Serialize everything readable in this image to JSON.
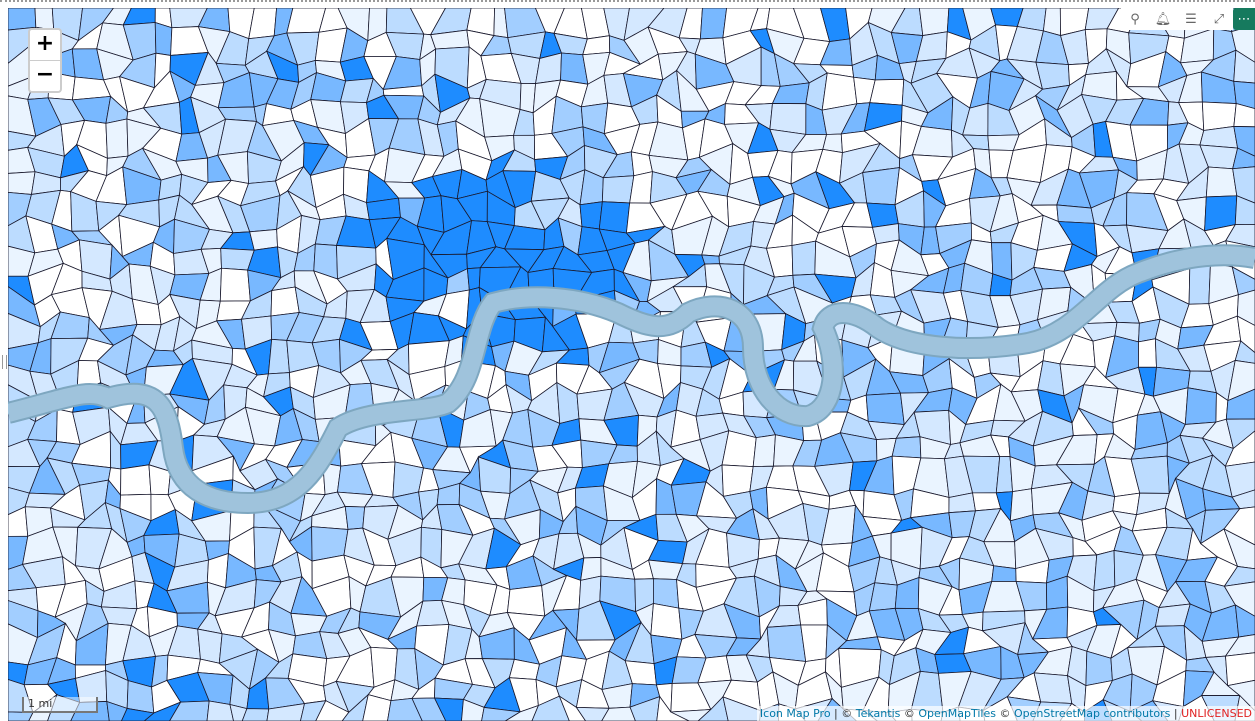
{
  "zoom_controls": {
    "zoom_in": "+",
    "zoom_out": "−"
  },
  "toolbar": [
    {
      "icon": "pin-icon",
      "glyph": "⚲"
    },
    {
      "icon": "bell-icon",
      "glyph": "🔔︎"
    },
    {
      "icon": "filter-icon",
      "glyph": "☰"
    },
    {
      "icon": "expand-icon",
      "glyph": "⤢"
    },
    {
      "icon": "more-options-icon",
      "glyph": "⋯"
    }
  ],
  "scale_bar": {
    "label": "1 mi"
  },
  "attribution": {
    "icon_map_pro": "Icon Map Pro",
    "sep1": " | © ",
    "tekantis": "Tekantis",
    "sep2": " © ",
    "openmaptiles": "OpenMapTiles",
    "sep3": " © ",
    "osm": "OpenStreetMap contributors",
    "sep4": " | ",
    "license": "UNLICENSED"
  },
  "colors": {
    "choropleth": [
      "#ffffff",
      "#eaf4ff",
      "#d4e8ff",
      "#bcdcff",
      "#a2ceff",
      "#78b8ff",
      "#4aa2ff",
      "#1e8cff"
    ],
    "boundary": "#1a1a2e",
    "river": "#9fc3dc",
    "river_edge": "#7ea7c0",
    "accent": "#167a5e"
  }
}
